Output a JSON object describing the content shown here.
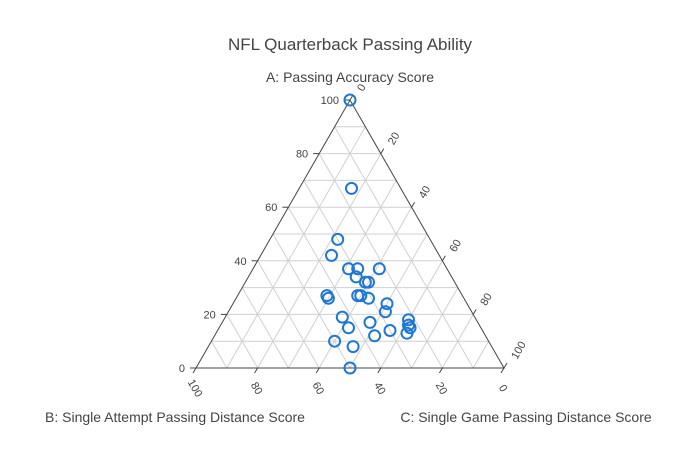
{
  "chart_data": {
    "type": "scatter",
    "subtype": "ternary",
    "title": "NFL Quarterback Passing Ability",
    "axes": {
      "a": {
        "title": "A: Passing Accuracy Score",
        "ticks": [
          "0",
          "20",
          "40",
          "60",
          "80",
          "100"
        ]
      },
      "b": {
        "title": "B: Single Attempt Passing Distance Score",
        "ticks": [
          "0",
          "20",
          "40",
          "60",
          "80",
          "100"
        ]
      },
      "c": {
        "title": "C: Single Game Passing Distance Score",
        "ticks": [
          "0",
          "20",
          "40",
          "60",
          "80",
          "100"
        ]
      }
    },
    "grid": true,
    "marker": {
      "symbol": "circle-open",
      "color": "#1f77d4"
    },
    "points": [
      {
        "a": 100,
        "b": 0,
        "c": 0
      },
      {
        "a": 67,
        "b": 16,
        "c": 17
      },
      {
        "a": 48,
        "b": 30,
        "c": 22
      },
      {
        "a": 42,
        "b": 35,
        "c": 23
      },
      {
        "a": 37,
        "b": 32,
        "c": 31
      },
      {
        "a": 37,
        "b": 29,
        "c": 34
      },
      {
        "a": 37,
        "b": 22,
        "c": 41
      },
      {
        "a": 34,
        "b": 31,
        "c": 35
      },
      {
        "a": 32,
        "b": 29,
        "c": 39
      },
      {
        "a": 32,
        "b": 28,
        "c": 40
      },
      {
        "a": 27,
        "b": 44,
        "c": 29
      },
      {
        "a": 26,
        "b": 44,
        "c": 30
      },
      {
        "a": 27,
        "b": 34,
        "c": 39
      },
      {
        "a": 27,
        "b": 33,
        "c": 40
      },
      {
        "a": 26,
        "b": 31,
        "c": 43
      },
      {
        "a": 24,
        "b": 26,
        "c": 50
      },
      {
        "a": 21,
        "b": 28,
        "c": 51
      },
      {
        "a": 19,
        "b": 43,
        "c": 38
      },
      {
        "a": 18,
        "b": 22,
        "c": 60
      },
      {
        "a": 17,
        "b": 35,
        "c": 48
      },
      {
        "a": 16,
        "b": 23,
        "c": 61
      },
      {
        "a": 15,
        "b": 43,
        "c": 42
      },
      {
        "a": 15,
        "b": 23,
        "c": 62
      },
      {
        "a": 14,
        "b": 30,
        "c": 56
      },
      {
        "a": 13,
        "b": 25,
        "c": 62
      },
      {
        "a": 12,
        "b": 36,
        "c": 52
      },
      {
        "a": 10,
        "b": 50,
        "c": 40
      },
      {
        "a": 8,
        "b": 45,
        "c": 47
      },
      {
        "a": 0,
        "b": 50,
        "c": 50
      }
    ]
  }
}
